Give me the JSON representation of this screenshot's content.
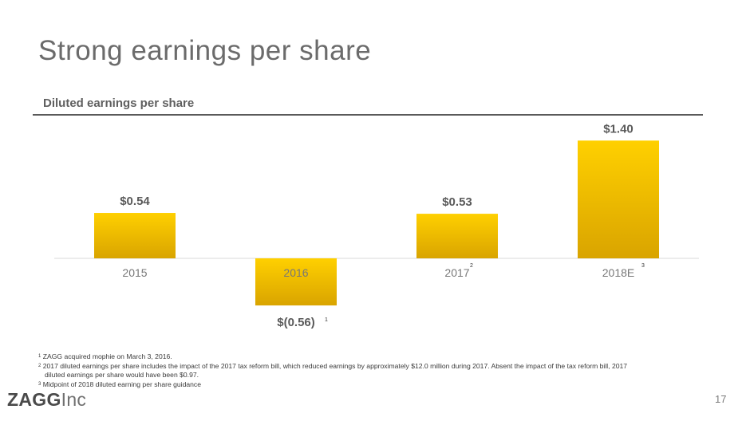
{
  "slide": {
    "title": "Strong earnings per share",
    "page_number": "17"
  },
  "logo": {
    "bold": "ZAGG",
    "light": "Inc"
  },
  "footnotes": [
    {
      "marker": "1",
      "text": "ZAGG acquired mophie on March 3, 2016."
    },
    {
      "marker": "2",
      "text": "2017 diluted earnings per share includes the impact of the 2017 tax reform bill, which reduced earnings by approximately $12.0 million during 2017. Absent the impact of the tax reform bill, 2017",
      "continuation": "diluted earnings per share would have been $0.97."
    },
    {
      "marker": "3",
      "text": "Midpoint of 2018 diluted earning per share guidance"
    }
  ],
  "chart_data": {
    "type": "bar",
    "title": "Diluted earnings per share",
    "categories": [
      "2015",
      "2016",
      "2017",
      "2018E"
    ],
    "values": [
      0.54,
      -0.56,
      0.53,
      1.4
    ],
    "data_labels": [
      "$0.54",
      "$(0.56)",
      "$0.53",
      "$1.40"
    ],
    "footnote_markers": [
      "",
      "1",
      "2",
      "3"
    ],
    "ylim": [
      -0.6,
      1.5
    ],
    "grid": false,
    "legend": "none",
    "colors": {
      "bar_top": "#ffd000",
      "bar_bottom": "#d9a400",
      "label": "#5a5a5a",
      "tick": "#777777",
      "axis": "#d9d9d9"
    }
  }
}
